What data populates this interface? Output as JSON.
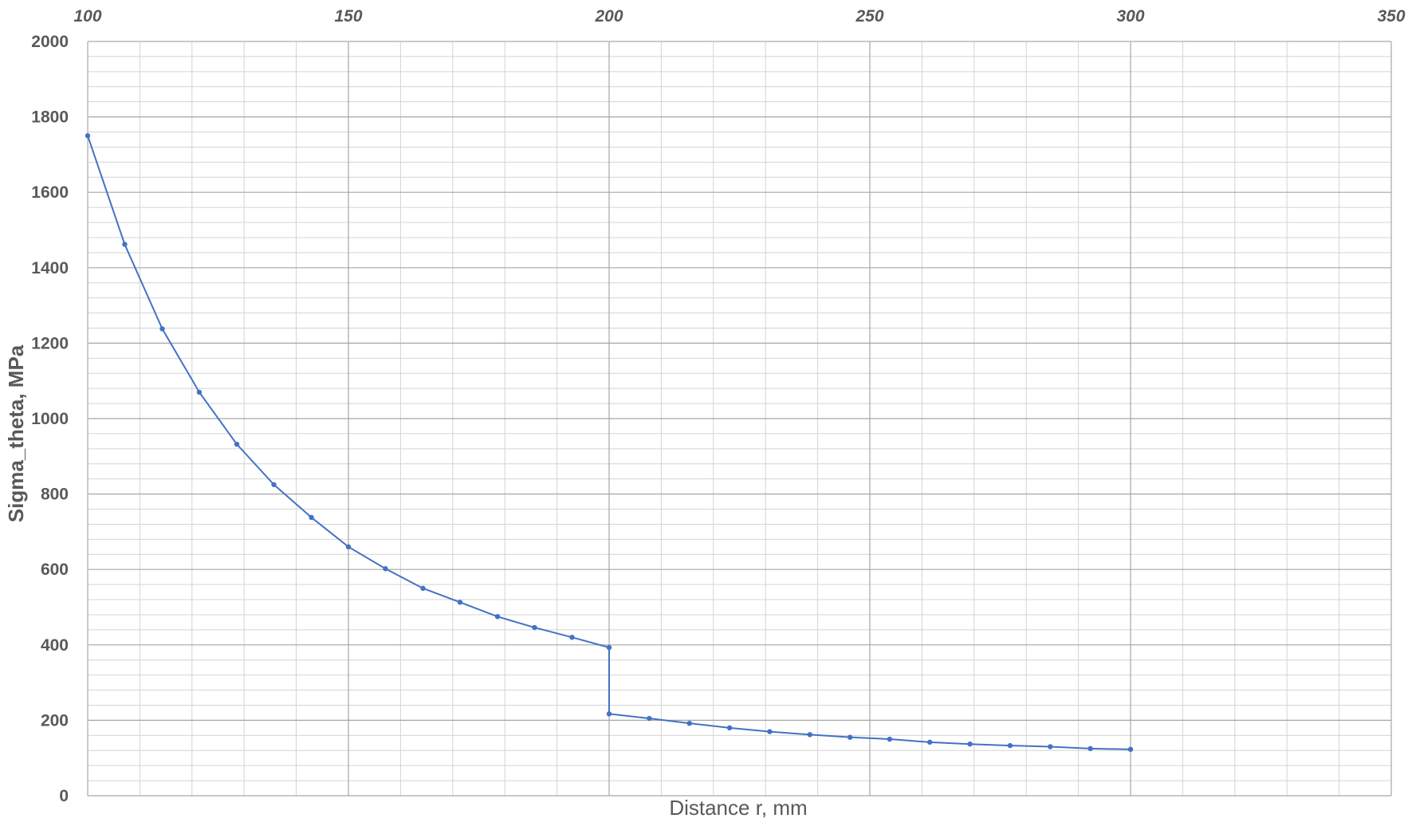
{
  "chart_data": {
    "type": "scatter",
    "title": "",
    "xlabel": "Distance r, mm",
    "ylabel": "Sigma_theta, MPa",
    "xlim": [
      100,
      350
    ],
    "ylim": [
      0,
      2000
    ],
    "x_ticks": [
      "100",
      "150",
      "200",
      "250",
      "300",
      "350"
    ],
    "y_ticks": [
      "0",
      "200",
      "400",
      "600",
      "800",
      "1000",
      "1200",
      "1400",
      "1600",
      "1800",
      "2000"
    ],
    "x_axis_position": "top",
    "grid": true,
    "line_color": "#4472C4",
    "series": [
      {
        "x": [
          100,
          107.1,
          114.3,
          121.4,
          128.6,
          135.7,
          142.9,
          150,
          157.1,
          164.3,
          171.4,
          178.6,
          185.7,
          192.9,
          200
        ],
        "values": [
          1750,
          1462,
          1238,
          1070,
          932,
          825,
          738,
          660,
          602,
          550,
          513,
          475,
          446,
          420,
          393
        ]
      },
      {
        "x": [
          200,
          207.7,
          215.4,
          223.1,
          230.8,
          238.5,
          246.2,
          253.8,
          261.5,
          269.2,
          276.9,
          284.6,
          292.3,
          300
        ],
        "values": [
          217,
          205,
          192,
          180,
          170,
          162,
          155,
          150,
          142,
          137,
          133,
          130,
          125,
          123
        ]
      }
    ]
  }
}
